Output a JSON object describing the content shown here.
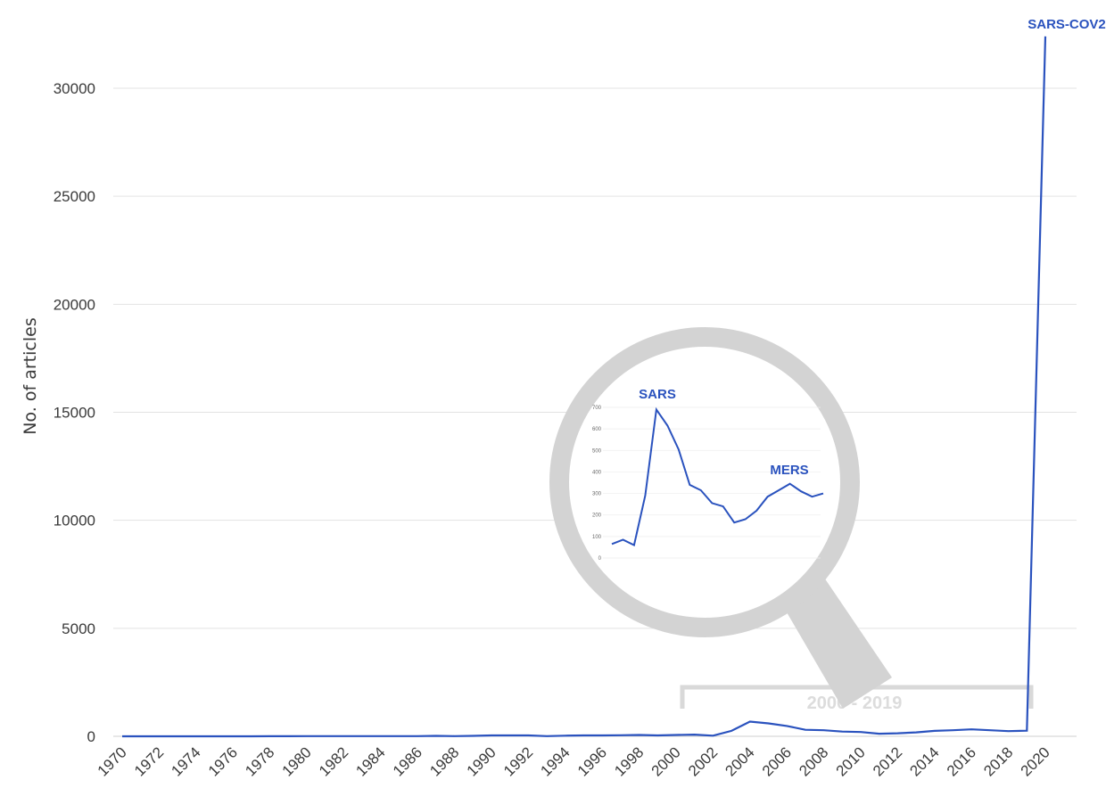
{
  "chart_data": [
    {
      "type": "line",
      "ylabel": "No. of articles",
      "xlabel": "",
      "ylim": [
        0,
        32500
      ],
      "yticks": [
        "0",
        "5000",
        "10000",
        "15000",
        "20000",
        "25000",
        "30000"
      ],
      "xticks": [
        "1970",
        "1972",
        "1974",
        "1976",
        "1978",
        "1980",
        "1982",
        "1984",
        "1986",
        "1988",
        "1990",
        "1992",
        "1994",
        "1996",
        "1998",
        "2000",
        "2002",
        "2004",
        "2006",
        "2008",
        "2010",
        "2012",
        "2014",
        "2016",
        "2018",
        "2020"
      ],
      "grid": true,
      "color": "#2a52be",
      "x": [
        1970,
        1971,
        1972,
        1973,
        1974,
        1975,
        1976,
        1977,
        1978,
        1979,
        1980,
        1981,
        1982,
        1983,
        1984,
        1985,
        1986,
        1987,
        1988,
        1989,
        1990,
        1991,
        1992,
        1993,
        1994,
        1995,
        1996,
        1997,
        1998,
        1999,
        2000,
        2001,
        2002,
        2003,
        2004,
        2005,
        2006,
        2007,
        2008,
        2009,
        2010,
        2011,
        2012,
        2013,
        2014,
        2015,
        2016,
        2017,
        2018,
        2019,
        2020
      ],
      "values": [
        0,
        0,
        0,
        0,
        0,
        0,
        0,
        0,
        5,
        5,
        10,
        10,
        10,
        10,
        10,
        10,
        10,
        20,
        10,
        20,
        40,
        40,
        40,
        10,
        30,
        40,
        40,
        50,
        60,
        40,
        60,
        80,
        30,
        250,
        680,
        600,
        480,
        300,
        280,
        220,
        200,
        120,
        140,
        180,
        250,
        280,
        320,
        280,
        240,
        260,
        32400
      ],
      "annotations": [
        {
          "text": "SARS-COV2",
          "x": 2020
        }
      ],
      "bracket_label": "2000 - 2019"
    },
    {
      "type": "line",
      "title": "",
      "ylim": [
        0,
        700
      ],
      "yticks": [
        "0",
        "100",
        "200",
        "300",
        "400",
        "500",
        "600",
        "700"
      ],
      "grid": true,
      "color": "#2a52be",
      "x": [
        2000,
        2001,
        2002,
        2003,
        2004,
        2005,
        2006,
        2007,
        2008,
        2009,
        2010,
        2011,
        2012,
        2013,
        2014,
        2015,
        2016,
        2017,
        2018,
        2019
      ],
      "values": [
        65,
        85,
        60,
        290,
        690,
        615,
        505,
        340,
        315,
        255,
        240,
        165,
        180,
        220,
        285,
        315,
        345,
        310,
        285,
        300
      ],
      "annotations": [
        {
          "text": "SARS",
          "x": 2003
        },
        {
          "text": "MERS",
          "x": 2015
        }
      ]
    }
  ]
}
